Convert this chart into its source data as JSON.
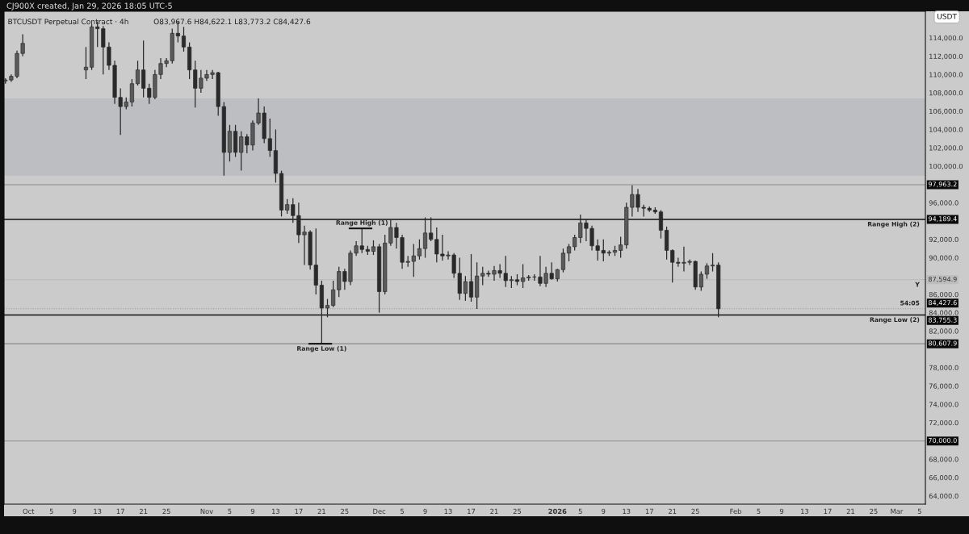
{
  "chart_data": {
    "type": "candlestick",
    "title": "BTCUSDT Perpetual Contract · 4h",
    "subtitle": "O83,967.6 H84,622.1 L83,773.2 C84,427.6",
    "annotations": [
      "CJ900X created, Jan 29, 2026 18:05 UTC-5",
      "USDT",
      {
        "text": "Range High (1)",
        "x": "2025-11-28",
        "y": 93200
      },
      {
        "text": "Range Low (1)",
        "x": "2025-11-21",
        "y": 80607.9
      },
      {
        "text": "Range High (2)",
        "x": "2026-03-05",
        "y": 94189.4
      },
      {
        "text": "Range Low (2)",
        "x": "2026-03-05",
        "y": 83755.3
      },
      {
        "text": "Y",
        "x": "2026-03-05",
        "y": 87594.9
      },
      {
        "text": "54:05",
        "x": "2026-03-05",
        "y": 84427.6
      }
    ],
    "color": "#2a2a2a",
    "x": [
      "2025-09-27",
      "2025-09-28",
      "2025-09-29",
      "2025-09-30",
      "2025-10-11",
      "2025-10-12",
      "2025-10-13",
      "2025-10-14",
      "2025-10-15",
      "2025-10-16",
      "2025-10-17",
      "2025-10-18",
      "2025-10-19",
      "2025-10-20",
      "2025-10-21",
      "2025-10-22",
      "2025-10-23",
      "2025-10-24",
      "2025-10-25",
      "2025-10-26",
      "2025-10-27",
      "2025-10-28",
      "2025-10-29",
      "2025-10-30",
      "2025-10-31",
      "2025-11-01",
      "2025-11-02",
      "2025-11-03",
      "2025-11-04",
      "2025-11-05",
      "2025-11-06",
      "2025-11-07",
      "2025-11-08",
      "2025-11-09",
      "2025-11-10",
      "2025-11-11",
      "2025-11-12",
      "2025-11-13",
      "2025-11-14",
      "2025-11-15",
      "2025-11-16",
      "2025-11-17",
      "2025-11-18",
      "2025-11-19",
      "2025-11-20",
      "2025-11-21",
      "2025-11-22",
      "2025-11-23",
      "2025-11-24",
      "2025-11-25",
      "2025-11-26",
      "2025-11-27",
      "2025-11-28",
      "2025-11-29",
      "2025-11-30",
      "2025-12-01",
      "2025-12-02",
      "2025-12-03",
      "2025-12-04",
      "2025-12-05",
      "2025-12-06",
      "2025-12-07",
      "2025-12-08",
      "2025-12-09",
      "2025-12-10",
      "2025-12-11",
      "2025-12-12",
      "2025-12-13",
      "2025-12-14",
      "2025-12-15",
      "2025-12-16",
      "2025-12-17",
      "2025-12-18",
      "2025-12-19",
      "2025-12-20",
      "2025-12-21",
      "2025-12-22",
      "2025-12-23",
      "2025-12-24",
      "2025-12-25",
      "2025-12-26",
      "2025-12-27",
      "2025-12-28",
      "2025-12-29",
      "2025-12-30",
      "2025-12-31",
      "2026-01-01",
      "2026-01-02",
      "2026-01-03",
      "2026-01-04",
      "2026-01-05",
      "2026-01-06",
      "2026-01-07",
      "2026-01-08",
      "2026-01-09",
      "2026-01-10",
      "2026-01-11",
      "2026-01-12",
      "2026-01-13",
      "2026-01-14",
      "2026-01-15",
      "2026-01-16",
      "2026-01-17",
      "2026-01-18",
      "2026-01-19",
      "2026-01-20",
      "2026-01-21",
      "2026-01-22",
      "2026-01-23",
      "2026-01-24",
      "2026-01-25",
      "2026-01-26",
      "2026-01-27",
      "2026-01-28",
      "2026-01-29"
    ],
    "ohlc": [
      [
        109300,
        109600,
        109000,
        109400
      ],
      [
        109400,
        110000,
        109200,
        109800
      ],
      [
        109800,
        112600,
        109600,
        112300
      ],
      [
        112300,
        114400,
        112000,
        113400
      ],
      [
        110500,
        113000,
        109500,
        110800
      ],
      [
        110800,
        115500,
        110500,
        115200
      ],
      [
        115200,
        115800,
        113000,
        115000
      ],
      [
        115000,
        115300,
        110000,
        113000
      ],
      [
        113000,
        113500,
        110500,
        111000
      ],
      [
        111000,
        111500,
        106800,
        107500
      ],
      [
        107500,
        108500,
        103400,
        106500
      ],
      [
        106500,
        107500,
        106200,
        107000
      ],
      [
        107000,
        109500,
        106500,
        109000
      ],
      [
        109000,
        111500,
        108800,
        110500
      ],
      [
        110500,
        113700,
        107500,
        108500
      ],
      [
        108500,
        109000,
        106800,
        107500
      ],
      [
        107500,
        110500,
        107300,
        110000
      ],
      [
        110000,
        111800,
        109500,
        111200
      ],
      [
        111200,
        111800,
        110800,
        111500
      ],
      [
        111500,
        115000,
        111200,
        114500
      ],
      [
        114500,
        115760,
        113500,
        114200
      ],
      [
        114200,
        115200,
        112500,
        113000
      ],
      [
        113000,
        113500,
        109500,
        110500
      ],
      [
        110500,
        111500,
        106400,
        108500
      ],
      [
        108500,
        110500,
        108000,
        109600
      ],
      [
        109600,
        110500,
        109300,
        110000
      ],
      [
        110000,
        110500,
        109500,
        110200
      ],
      [
        110200,
        110300,
        105500,
        106500
      ],
      [
        106500,
        107000,
        98950,
        101500
      ],
      [
        101500,
        104500,
        100500,
        103800
      ],
      [
        103800,
        104500,
        101000,
        101500
      ],
      [
        101500,
        103800,
        99500,
        103200
      ],
      [
        103200,
        103500,
        101400,
        102300
      ],
      [
        102300,
        105000,
        101700,
        104700
      ],
      [
        104700,
        107400,
        104500,
        105800
      ],
      [
        105800,
        106500,
        102500,
        103000
      ],
      [
        103000,
        105200,
        101000,
        101700
      ],
      [
        101700,
        104000,
        98200,
        99200
      ],
      [
        99200,
        99500,
        94500,
        95200
      ],
      [
        95200,
        96400,
        94800,
        95800
      ],
      [
        95800,
        96500,
        93800,
        94600
      ],
      [
        94600,
        96000,
        91600,
        92500
      ],
      [
        92500,
        93500,
        89200,
        92800
      ],
      [
        92800,
        93000,
        88700,
        89200
      ],
      [
        89200,
        93200,
        86000,
        87000
      ],
      [
        87000,
        87500,
        80607.9,
        84500
      ],
      [
        84500,
        85500,
        83500,
        84800
      ],
      [
        84800,
        87500,
        84600,
        86500
      ],
      [
        86500,
        89000,
        85700,
        88500
      ],
      [
        88500,
        88800,
        86500,
        87400
      ],
      [
        87400,
        90800,
        87000,
        90500
      ],
      [
        90500,
        91800,
        90200,
        91300
      ],
      [
        91300,
        93200,
        90500,
        90900
      ],
      [
        90900,
        91300,
        90300,
        90700
      ],
      [
        90700,
        91900,
        90300,
        91200
      ],
      [
        91200,
        91500,
        84000,
        86300
      ],
      [
        86300,
        92500,
        86000,
        91600
      ],
      [
        91600,
        94100,
        91300,
        93300
      ],
      [
        93300,
        93800,
        91000,
        92200
      ],
      [
        92200,
        92500,
        88800,
        89500
      ],
      [
        89500,
        90200,
        89000,
        89600
      ],
      [
        89600,
        91500,
        87900,
        90200
      ],
      [
        90200,
        92000,
        89800,
        91000
      ],
      [
        91000,
        94400,
        90000,
        92700
      ],
      [
        92700,
        94400,
        91800,
        92000
      ],
      [
        92000,
        93300,
        89500,
        90400
      ],
      [
        90400,
        92500,
        89700,
        90200
      ],
      [
        90200,
        90700,
        89800,
        90300
      ],
      [
        90300,
        90500,
        87800,
        88300
      ],
      [
        88300,
        90000,
        85400,
        86100
      ],
      [
        86100,
        88000,
        85300,
        87400
      ],
      [
        87400,
        90400,
        85200,
        85700
      ],
      [
        85700,
        89500,
        84400,
        88000
      ],
      [
        88000,
        89000,
        87000,
        88300
      ],
      [
        88300,
        88600,
        87900,
        88200
      ],
      [
        88200,
        89100,
        87500,
        88600
      ],
      [
        88600,
        89300,
        87800,
        88300
      ],
      [
        88300,
        90200,
        86800,
        87500
      ],
      [
        87500,
        88000,
        86700,
        87600
      ],
      [
        87600,
        88200,
        87000,
        87400
      ],
      [
        87400,
        89300,
        86700,
        87800
      ],
      [
        87800,
        88100,
        87500,
        87900
      ],
      [
        87900,
        88200,
        87500,
        87900
      ],
      [
        87900,
        90200,
        86900,
        87200
      ],
      [
        87200,
        89000,
        86800,
        88300
      ],
      [
        88300,
        89500,
        87600,
        87700
      ],
      [
        87700,
        88800,
        87400,
        88700
      ],
      [
        88700,
        91000,
        88400,
        90500
      ],
      [
        90500,
        91500,
        89600,
        91200
      ],
      [
        91200,
        92500,
        90800,
        92200
      ],
      [
        92200,
        94700,
        91600,
        93800
      ],
      [
        93800,
        94200,
        91800,
        93200
      ],
      [
        93200,
        93500,
        90800,
        91300
      ],
      [
        91300,
        92000,
        89700,
        90800
      ],
      [
        90800,
        92000,
        89600,
        90500
      ],
      [
        90500,
        90800,
        90200,
        90600
      ],
      [
        90600,
        91300,
        90200,
        90800
      ],
      [
        90800,
        92300,
        90000,
        91400
      ],
      [
        91400,
        96000,
        91000,
        95500
      ],
      [
        95500,
        97900,
        94500,
        96900
      ],
      [
        96900,
        97500,
        95000,
        95500
      ],
      [
        95500,
        95800,
        94500,
        95400
      ],
      [
        95400,
        95600,
        95000,
        95200
      ],
      [
        95200,
        95500,
        94800,
        95000
      ],
      [
        95000,
        95200,
        92100,
        93000
      ],
      [
        93000,
        93400,
        89800,
        90800
      ],
      [
        90800,
        90900,
        87300,
        89500
      ],
      [
        89500,
        90000,
        89000,
        89400
      ],
      [
        89400,
        91200,
        88500,
        89500
      ],
      [
        89500,
        89800,
        89200,
        89600
      ],
      [
        89600,
        89700,
        86500,
        86800
      ],
      [
        86800,
        88500,
        86400,
        88200
      ],
      [
        88200,
        89400,
        87700,
        89100
      ],
      [
        89100,
        90500,
        88500,
        89200
      ],
      [
        89200,
        89500,
        83500,
        84427.6
      ]
    ],
    "xlim": [
      "2025-09-26T18:00",
      "2026-03-06"
    ],
    "xticks": [
      {
        "value": "2025-10-01",
        "label": "Oct"
      },
      {
        "value": "2025-10-05",
        "label": "5"
      },
      {
        "value": "2025-10-09",
        "label": "9"
      },
      {
        "value": "2025-10-13",
        "label": "13"
      },
      {
        "value": "2025-10-17",
        "label": "17"
      },
      {
        "value": "2025-10-21",
        "label": "21"
      },
      {
        "value": "2025-10-25",
        "label": "25"
      },
      {
        "value": "2025-11-01",
        "label": "Nov"
      },
      {
        "value": "2025-11-05",
        "label": "5"
      },
      {
        "value": "2025-11-09",
        "label": "9"
      },
      {
        "value": "2025-11-13",
        "label": "13"
      },
      {
        "value": "2025-11-17",
        "label": "17"
      },
      {
        "value": "2025-11-21",
        "label": "21"
      },
      {
        "value": "2025-11-25",
        "label": "25"
      },
      {
        "value": "2025-12-01",
        "label": "Dec"
      },
      {
        "value": "2025-12-05",
        "label": "5"
      },
      {
        "value": "2025-12-09",
        "label": "9"
      },
      {
        "value": "2025-12-13",
        "label": "13"
      },
      {
        "value": "2025-12-17",
        "label": "17"
      },
      {
        "value": "2025-12-21",
        "label": "21"
      },
      {
        "value": "2025-12-25",
        "label": "25"
      },
      {
        "value": "2026-01-01",
        "label": "2026"
      },
      {
        "value": "2026-01-05",
        "label": "5"
      },
      {
        "value": "2026-01-09",
        "label": "9"
      },
      {
        "value": "2026-01-13",
        "label": "13"
      },
      {
        "value": "2026-01-17",
        "label": "17"
      },
      {
        "value": "2026-01-21",
        "label": "21"
      },
      {
        "value": "2026-01-25",
        "label": "25"
      },
      {
        "value": "2026-02-01",
        "label": "Feb"
      },
      {
        "value": "2026-02-05",
        "label": "5"
      },
      {
        "value": "2026-02-09",
        "label": "9"
      },
      {
        "value": "2026-02-13",
        "label": "13"
      },
      {
        "value": "2026-02-17",
        "label": "17"
      },
      {
        "value": "2026-02-21",
        "label": "21"
      },
      {
        "value": "2026-02-25",
        "label": "25"
      },
      {
        "value": "2026-03-01",
        "label": "Mar"
      },
      {
        "value": "2026-03-05",
        "label": "5"
      }
    ],
    "ylim": [
      63100,
      116900
    ],
    "yticks": [
      {
        "value": 64000,
        "label": "64,000.0"
      },
      {
        "value": 66000,
        "label": "66,000.0"
      },
      {
        "value": 68000,
        "label": "68,000.0"
      },
      {
        "value": 70000,
        "label": "70,000.0"
      },
      {
        "value": 72000,
        "label": "72,000.0"
      },
      {
        "value": 74000,
        "label": "74,000.0"
      },
      {
        "value": 76000,
        "label": "76,000.0"
      },
      {
        "value": 78000,
        "label": "78,000.0"
      },
      {
        "value": 82000,
        "label": "82,000.0"
      },
      {
        "value": 84000,
        "label": "84,000.0"
      },
      {
        "value": 86000,
        "label": "86,000.0"
      },
      {
        "value": 90000,
        "label": "90,000.0"
      },
      {
        "value": 92000,
        "label": "92,000.0"
      },
      {
        "value": 96000,
        "label": "96,000.0"
      },
      {
        "value": 100000,
        "label": "100,000.0"
      },
      {
        "value": 102000,
        "label": "102,000.0"
      },
      {
        "value": 104000,
        "label": "104,000.0"
      },
      {
        "value": 106000,
        "label": "106,000.0"
      },
      {
        "value": 108000,
        "label": "108,000.0"
      },
      {
        "value": 110000,
        "label": "110,000.0"
      },
      {
        "value": 112000,
        "label": "112,000.0"
      },
      {
        "value": 114000,
        "label": "114,000.0"
      }
    ],
    "ref_lines": [
      {
        "axis": "y",
        "value": 97963.2,
        "label": "97,963.2",
        "color": "#8a8a8a",
        "line_style": "solid"
      },
      {
        "axis": "y",
        "value": 94189.4,
        "label": "94,189.4",
        "color": "#111111",
        "line_style": "solid"
      },
      {
        "axis": "y",
        "value": 87594.9,
        "label": "87,594.9",
        "color": "#b8b8b8",
        "line_style": "solid"
      },
      {
        "axis": "y",
        "value": 84427.6,
        "label": "84,427.6",
        "color": "#9a9a9a",
        "line_style": "dotted"
      },
      {
        "axis": "y",
        "value": 83755.3,
        "label": "83,755.3",
        "color": "#111111",
        "line_style": "solid"
      },
      {
        "axis": "y",
        "value": 80607.9,
        "label": "80,607.9",
        "color": "#8a8a8a",
        "line_style": "solid"
      },
      {
        "axis": "y",
        "value": 70000,
        "label": "70,000.0",
        "color": "#9a9a9a",
        "line_style": "solid"
      }
    ],
    "bands": [
      {
        "axis": "y",
        "from": 98950,
        "to": 107400,
        "label": null,
        "color": "#bdbec2"
      }
    ],
    "grid": false,
    "legend": false
  }
}
